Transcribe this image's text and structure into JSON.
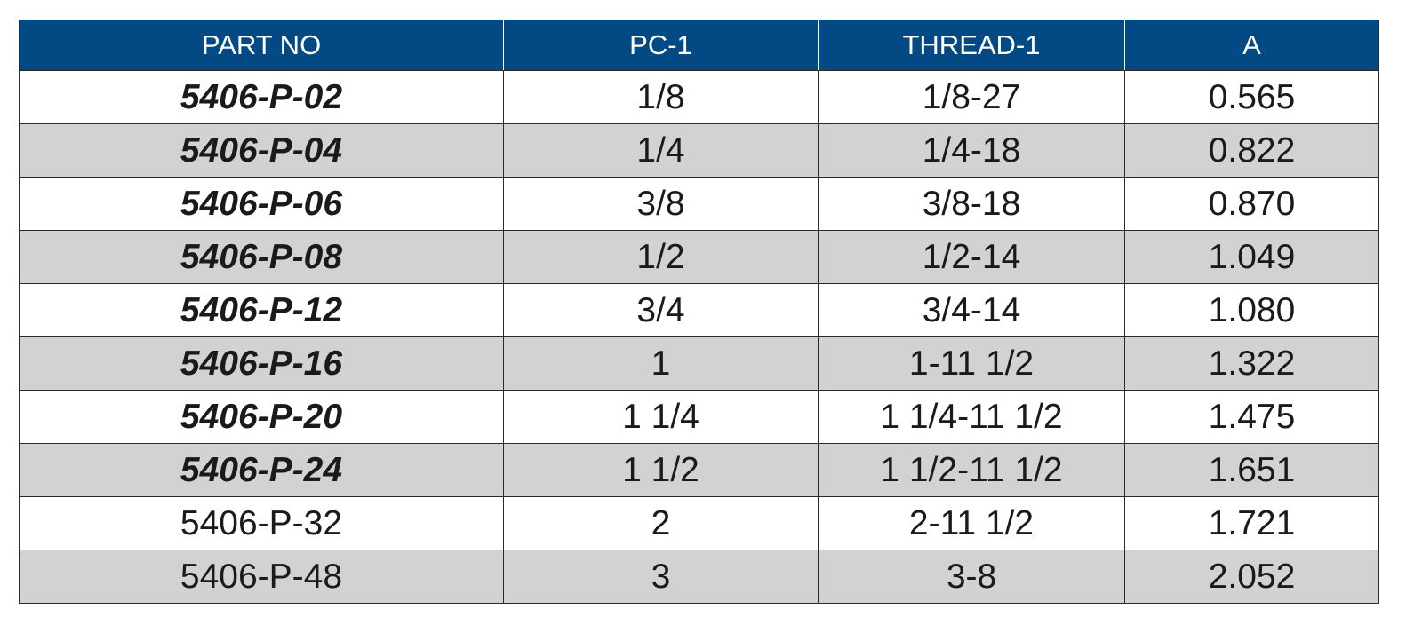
{
  "table": {
    "headers": [
      "PART NO",
      "PC-1",
      "THREAD-1",
      "A"
    ],
    "rows": [
      {
        "part_no": "5406-P-02",
        "pc1": "1/8",
        "thread1": "1/8-27",
        "a": "0.565",
        "emphasized": true
      },
      {
        "part_no": "5406-P-04",
        "pc1": "1/4",
        "thread1": "1/4-18",
        "a": "0.822",
        "emphasized": true
      },
      {
        "part_no": "5406-P-06",
        "pc1": "3/8",
        "thread1": "3/8-18",
        "a": "0.870",
        "emphasized": true
      },
      {
        "part_no": "5406-P-08",
        "pc1": "1/2",
        "thread1": "1/2-14",
        "a": "1.049",
        "emphasized": true
      },
      {
        "part_no": "5406-P-12",
        "pc1": "3/4",
        "thread1": "3/4-14",
        "a": "1.080",
        "emphasized": true
      },
      {
        "part_no": "5406-P-16",
        "pc1": "1",
        "thread1": "1-11 1/2",
        "a": "1.322",
        "emphasized": true
      },
      {
        "part_no": "5406-P-20",
        "pc1": "1 1/4",
        "thread1": "1 1/4-11 1/2",
        "a": "1.475",
        "emphasized": true
      },
      {
        "part_no": "5406-P-24",
        "pc1": "1 1/2",
        "thread1": "1 1/2-11 1/2",
        "a": "1.651",
        "emphasized": true
      },
      {
        "part_no": "5406-P-32",
        "pc1": "2",
        "thread1": "2-11 1/2",
        "a": "1.721",
        "emphasized": false
      },
      {
        "part_no": "5406-P-48",
        "pc1": "3",
        "thread1": "3-8",
        "a": "2.052",
        "emphasized": false
      }
    ]
  },
  "colors": {
    "header_bg": "#034a84",
    "header_text": "#ffffff",
    "stripe_bg": "#d1d2d4",
    "row_bg": "#ffffff",
    "border": "#2a2a2a"
  }
}
